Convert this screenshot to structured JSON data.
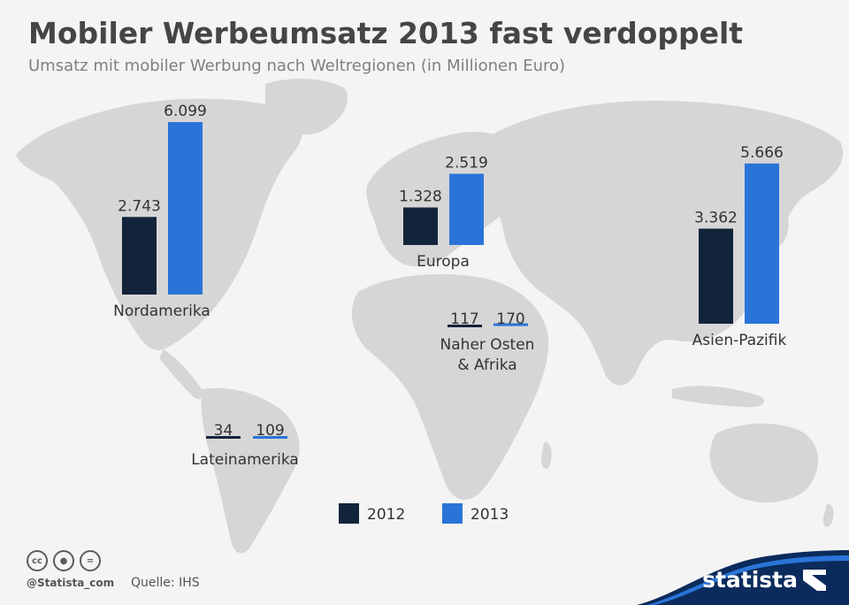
{
  "title": "Mobiler Werbeumsatz 2013 fast verdoppelt",
  "subtitle": "Umsatz mit mobiler Werbung nach Weltregionen (in Millionen Euro)",
  "footer": {
    "credit": "@Statista_com",
    "source": "Quelle: IHS",
    "brand": "statista",
    "license_icons": [
      "cc-icon",
      "by-icon",
      "nd-icon"
    ]
  },
  "colors": {
    "2012": "#13243a",
    "2013": "#2a74d8",
    "map": "#d6d6d6",
    "background": "#f4f4f4",
    "brand": "#0b2b5c"
  },
  "chart_data": {
    "type": "bar",
    "title": "Mobiler Werbeumsatz 2013 fast verdoppelt",
    "subtitle": "Umsatz mit mobiler Werbung nach Weltregionen (in Millionen Euro)",
    "categories": [
      "Nordamerika",
      "Europa",
      "Naher Osten & Afrika",
      "Lateinamerika",
      "Asien-Pazifik"
    ],
    "series": [
      {
        "name": "2012",
        "values": [
          2743,
          1328,
          117,
          34,
          3362
        ],
        "labels": [
          "2.743",
          "1.328",
          "117",
          "34",
          "3.362"
        ]
      },
      {
        "name": "2013",
        "values": [
          6099,
          2519,
          170,
          109,
          5666
        ],
        "labels": [
          "6.099",
          "2.519",
          "170",
          "109",
          "5.666"
        ]
      }
    ],
    "legend": [
      "2012",
      "2013"
    ],
    "legend_placement": "bottom-center",
    "grid": false,
    "background": "world map"
  }
}
